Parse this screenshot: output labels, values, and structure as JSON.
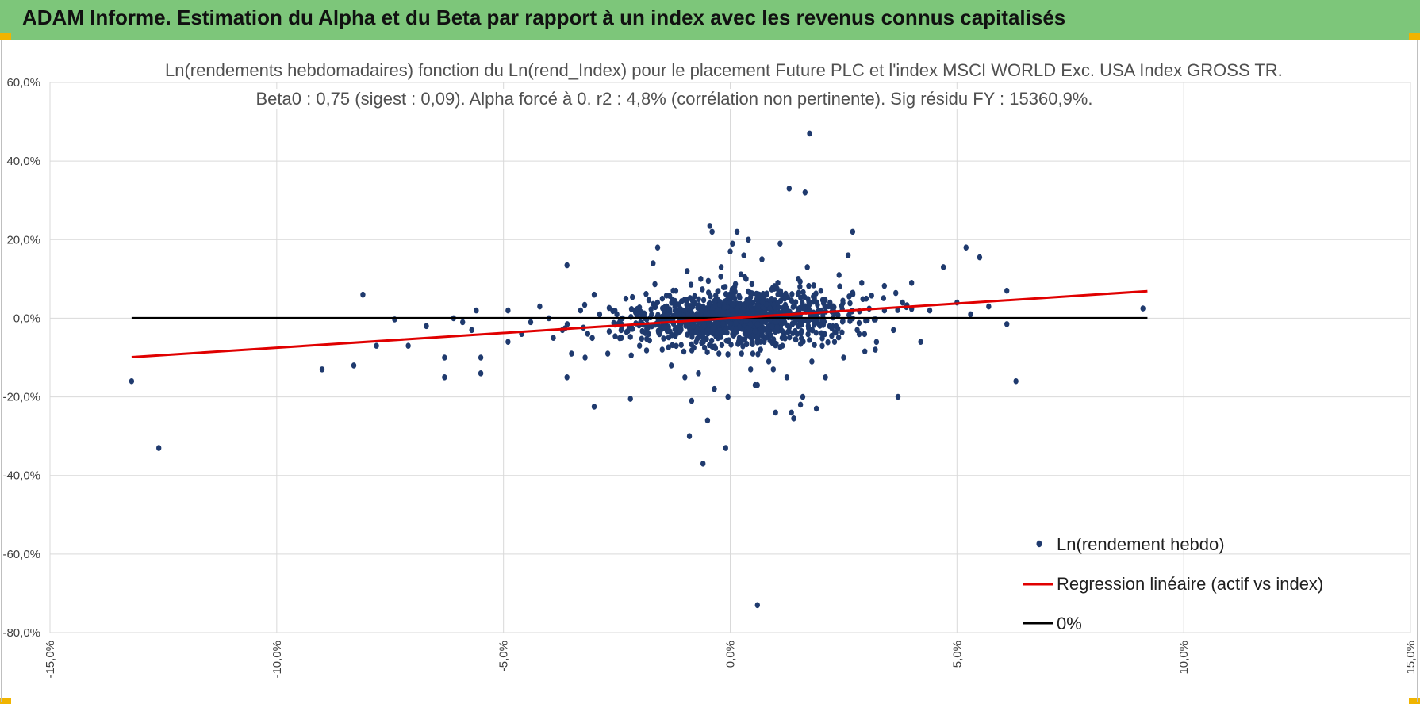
{
  "header": {
    "title": "ADAM Informe. Estimation du Alpha et du Beta par rapport à un index avec les revenus connus capitalisés"
  },
  "colors": {
    "banner": "#7dc67a",
    "points": "#1f3a6e",
    "regression": "#e00000",
    "zero_line": "#000000"
  },
  "chart_data": {
    "type": "scatter",
    "title": "Ln(rendements hebdomadaires) fonction du Ln(rend_Index) pour le placement Future PLC et l'index MSCI WORLD Exc. USA Index GROSS TR.",
    "subtitle": "Beta0 : 0,75 (sigest : 0,09).  Alpha forcé à 0. r2 : 4,8% (corrélation non pertinente). Sig résidu FY : 15360,9%.",
    "xlabel": "",
    "ylabel": "",
    "xlim": [
      -15,
      15
    ],
    "ylim": [
      -80,
      60
    ],
    "x_ticks": [
      "-15,0%",
      "-10,0%",
      "-5,0%",
      "0,0%",
      "5,0%",
      "10,0%",
      "15,0%"
    ],
    "y_ticks": [
      "60,0%",
      "40,0%",
      "20,0%",
      "0,0%",
      "-20,0%",
      "-40,0%",
      "-60,0%",
      "-80,0%"
    ],
    "grid": true,
    "legend_position": "bottom-right",
    "series": [
      {
        "name": "Ln(rendement hebdo)",
        "kind": "scatter",
        "points": [
          [
            -13.2,
            -16
          ],
          [
            -12.6,
            -33
          ],
          [
            -8.1,
            6
          ],
          [
            -9.0,
            -13
          ],
          [
            -8.3,
            -12
          ],
          [
            -7.8,
            -7
          ],
          [
            -7.4,
            -0.3
          ],
          [
            -7.1,
            -7
          ],
          [
            -6.7,
            -2
          ],
          [
            -6.3,
            -10
          ],
          [
            -6.3,
            -15
          ],
          [
            -6.1,
            0
          ],
          [
            -5.9,
            -1
          ],
          [
            -5.7,
            -3
          ],
          [
            -5.6,
            2
          ],
          [
            -5.5,
            -10
          ],
          [
            -5.5,
            -14
          ],
          [
            -4.9,
            -6
          ],
          [
            -4.9,
            2
          ],
          [
            -4.6,
            -4
          ],
          [
            -4.4,
            -1
          ],
          [
            -4.2,
            3
          ],
          [
            -4.0,
            0
          ],
          [
            -3.9,
            -5
          ],
          [
            -3.7,
            -3
          ],
          [
            -3.6,
            13.5
          ],
          [
            -3.6,
            -15
          ],
          [
            -3.5,
            -9
          ],
          [
            -3.3,
            2
          ],
          [
            -3.2,
            -10
          ],
          [
            -3.0,
            6
          ],
          [
            -3.0,
            -22.5
          ],
          [
            -2.7,
            -9
          ],
          [
            -2.5,
            1
          ],
          [
            -2.4,
            -5
          ],
          [
            -2.3,
            5
          ],
          [
            -2.2,
            -20.5
          ],
          [
            -2.1,
            2
          ],
          [
            -2.0,
            -7
          ],
          [
            -1.9,
            1
          ],
          [
            -1.8,
            -4
          ],
          [
            -1.7,
            14
          ],
          [
            -1.6,
            18
          ],
          [
            -1.5,
            -8
          ],
          [
            -1.4,
            3
          ],
          [
            -1.3,
            -12
          ],
          [
            -1.2,
            7
          ],
          [
            -1.1,
            -2
          ],
          [
            -1.0,
            -15
          ],
          [
            -0.95,
            12
          ],
          [
            -0.9,
            -30
          ],
          [
            -0.85,
            -21
          ],
          [
            -0.8,
            4
          ],
          [
            -0.75,
            -6
          ],
          [
            -0.7,
            -14
          ],
          [
            -0.65,
            10
          ],
          [
            -0.6,
            -37
          ],
          [
            -0.55,
            2
          ],
          [
            -0.5,
            -26
          ],
          [
            -0.45,
            23.5
          ],
          [
            -0.4,
            22
          ],
          [
            -0.35,
            -18
          ],
          [
            -0.3,
            5
          ],
          [
            -0.25,
            -9
          ],
          [
            -0.2,
            13
          ],
          [
            -0.15,
            -3
          ],
          [
            -0.1,
            -33
          ],
          [
            -0.05,
            -20
          ],
          [
            0.0,
            17
          ],
          [
            0.05,
            19
          ],
          [
            0.1,
            8
          ],
          [
            0.15,
            22
          ],
          [
            0.2,
            -5
          ],
          [
            0.25,
            -9
          ],
          [
            0.3,
            16
          ],
          [
            0.35,
            10
          ],
          [
            0.4,
            20
          ],
          [
            0.45,
            -13
          ],
          [
            0.5,
            4
          ],
          [
            0.55,
            -17
          ],
          [
            0.6,
            -17
          ],
          [
            0.6,
            -73
          ],
          [
            0.65,
            1
          ],
          [
            0.7,
            15
          ],
          [
            0.75,
            -6
          ],
          [
            0.8,
            6
          ],
          [
            0.85,
            -11
          ],
          [
            0.9,
            3
          ],
          [
            0.95,
            -13
          ],
          [
            1.0,
            -24
          ],
          [
            1.05,
            9
          ],
          [
            1.1,
            19
          ],
          [
            1.15,
            -7
          ],
          [
            1.2,
            5
          ],
          [
            1.25,
            -15
          ],
          [
            1.3,
            33
          ],
          [
            1.35,
            -24
          ],
          [
            1.4,
            -25.5
          ],
          [
            1.5,
            10
          ],
          [
            1.55,
            -22
          ],
          [
            1.6,
            -20
          ],
          [
            1.65,
            32
          ],
          [
            1.7,
            13
          ],
          [
            1.75,
            47
          ],
          [
            1.8,
            -11
          ],
          [
            1.9,
            -23
          ],
          [
            2.0,
            7
          ],
          [
            2.1,
            -15
          ],
          [
            2.2,
            4
          ],
          [
            2.3,
            -6
          ],
          [
            2.4,
            11
          ],
          [
            2.5,
            -10
          ],
          [
            2.6,
            16
          ],
          [
            2.7,
            22
          ],
          [
            2.8,
            -3
          ],
          [
            2.9,
            9
          ],
          [
            3.0,
            5
          ],
          [
            3.2,
            -8
          ],
          [
            3.4,
            2
          ],
          [
            3.6,
            -3
          ],
          [
            3.7,
            -20
          ],
          [
            3.8,
            4
          ],
          [
            4.0,
            9
          ],
          [
            4.2,
            -6
          ],
          [
            4.4,
            2
          ],
          [
            4.7,
            13
          ],
          [
            5.0,
            4
          ],
          [
            5.2,
            18
          ],
          [
            5.3,
            1
          ],
          [
            5.5,
            15.5
          ],
          [
            5.7,
            3
          ],
          [
            6.1,
            7
          ],
          [
            6.1,
            -1.5
          ],
          [
            6.3,
            -16
          ],
          [
            9.1,
            2.5
          ],
          [
            -0.6,
            3
          ],
          [
            -0.2,
            0
          ],
          [
            0.3,
            -2
          ],
          [
            0.8,
            1
          ],
          [
            1.2,
            -1
          ],
          [
            -1.0,
            0
          ],
          [
            0.1,
            5
          ],
          [
            -0.3,
            -4
          ]
        ],
        "dense_cluster": {
          "x_range": [
            -2.2,
            3.2
          ],
          "y_range": [
            -6,
            6
          ],
          "approx_count": 1050
        }
      },
      {
        "name": "Regression linéaire (actif vs index)",
        "kind": "line",
        "slope": 0.75,
        "intercept": 0,
        "x_range": [
          -13.2,
          9.2
        ]
      },
      {
        "name": "0%",
        "kind": "line",
        "slope": 0,
        "intercept": 0,
        "x_range": [
          -13.2,
          9.2
        ]
      }
    ]
  }
}
